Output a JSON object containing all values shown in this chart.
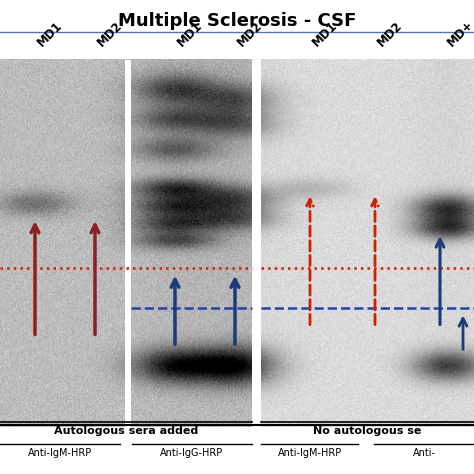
{
  "title": "Multiple Sclerosis - CSF",
  "title_fontsize": 13,
  "title_fontweight": "bold",
  "bg_color": "#ffffff",
  "col_labels": [
    "MD1",
    "MD2",
    "MD1",
    "MD2",
    "MD1",
    "MD2",
    "MD+"
  ],
  "bottom_group1_label": "Autologous sera added",
  "bottom_group2_label": "No autologous se",
  "bottom_sub1a": "Anti-IgM-HRP",
  "bottom_sub1b": "Anti-IgG-HRP",
  "bottom_sub2a": "Anti-IgM-HRP",
  "bottom_sub2b": "Anti-",
  "red_color": "#8B2020",
  "blue_color": "#1a3a7a",
  "red_dotted_color": "#cc2200",
  "blue_dashed_color": "#2244aa",
  "figsize": [
    4.74,
    4.74
  ],
  "dpi": 100
}
